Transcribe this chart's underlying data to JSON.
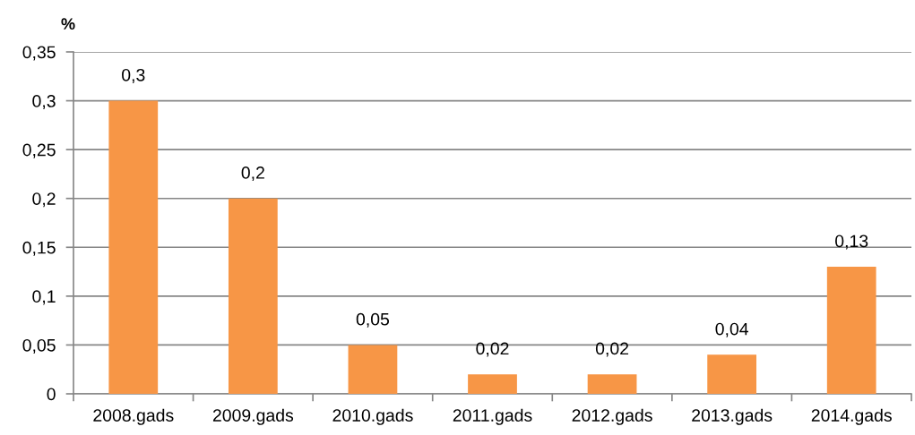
{
  "chart_data": {
    "type": "bar",
    "ylabel": "%",
    "categories": [
      "2008.gads",
      "2009.gads",
      "2010.gads",
      "2011.gads",
      "2012.gads",
      "2013.gads",
      "2014.gads"
    ],
    "values": [
      0.3,
      0.2,
      0.05,
      0.02,
      0.02,
      0.04,
      0.13
    ],
    "color": "#f79646",
    "value_labels": [
      "0,3",
      "0,2",
      "0,05",
      "0,02",
      "0,02",
      "0,04",
      "0,13"
    ],
    "ylim": [
      0,
      0.35
    ],
    "yticks": [
      0,
      {
        "value": 0.05,
        "label": "0,05"
      },
      {
        "value": 0.1,
        "label": "0,1"
      },
      {
        "value": 0.15,
        "label": "0,15"
      },
      {
        "value": 0.2,
        "label": "0,2"
      },
      {
        "value": 0.25,
        "label": "0,25"
      },
      {
        "value": 0.3,
        "label": "0,3"
      },
      {
        "value": 0.35,
        "label": "0,35"
      }
    ],
    "grid": "y"
  }
}
